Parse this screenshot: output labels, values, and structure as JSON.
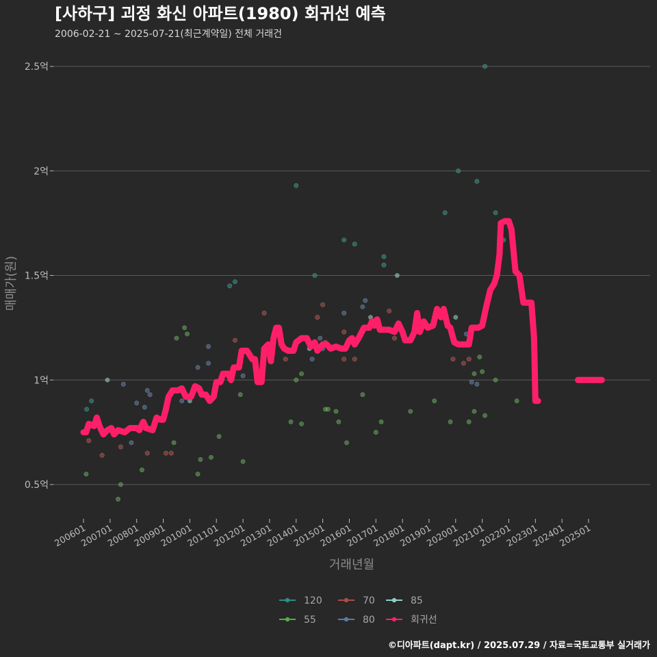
{
  "chart_data": {
    "type": "scatter",
    "title": "[사하구] 괴정 화신 아파트(1980) 회귀선 예측",
    "subtitle": "2006-02-21 ~ 2025-07-21(최근계약일) 전체 거래건",
    "xlabel": "거래년월",
    "ylabel": "매매가(원)",
    "ylim": [
      0.35,
      2.6
    ],
    "xlim": [
      2005.6,
      2027.3
    ],
    "y_ticks": [
      {
        "value": 0.5,
        "label": "0.5억"
      },
      {
        "value": 1.0,
        "label": "1억"
      },
      {
        "value": 1.5,
        "label": "1.5억"
      },
      {
        "value": 2.0,
        "label": "2억"
      },
      {
        "value": 2.5,
        "label": "2.5억"
      }
    ],
    "x_ticks": [
      {
        "value": 2006,
        "label": "200601"
      },
      {
        "value": 2007,
        "label": "200701"
      },
      {
        "value": 2008,
        "label": "200801"
      },
      {
        "value": 2009,
        "label": "200901"
      },
      {
        "value": 2010,
        "label": "201001"
      },
      {
        "value": 2011,
        "label": "201101"
      },
      {
        "value": 2012,
        "label": "201201"
      },
      {
        "value": 2013,
        "label": "201301"
      },
      {
        "value": 2014,
        "label": "201401"
      },
      {
        "value": 2015,
        "label": "201501"
      },
      {
        "value": 2016,
        "label": "201601"
      },
      {
        "value": 2017,
        "label": "201701"
      },
      {
        "value": 2018,
        "label": "201801"
      },
      {
        "value": 2019,
        "label": "201901"
      },
      {
        "value": 2020,
        "label": "202001"
      },
      {
        "value": 2021,
        "label": "202101"
      },
      {
        "value": 2022,
        "label": "202201"
      },
      {
        "value": 2023,
        "label": "202301"
      },
      {
        "value": 2024,
        "label": "202401"
      },
      {
        "value": 2025,
        "label": "202501"
      }
    ],
    "series": [
      {
        "name": "120",
        "color": "#2e8f86",
        "points": [
          [
            2006.12,
            0.86
          ],
          [
            2006.3,
            0.9
          ],
          [
            2011.5,
            1.45
          ],
          [
            2011.7,
            1.47
          ],
          [
            2014.0,
            1.93
          ],
          [
            2014.7,
            1.5
          ],
          [
            2015.8,
            1.67
          ],
          [
            2016.2,
            1.65
          ],
          [
            2017.3,
            1.59
          ],
          [
            2017.3,
            1.55
          ],
          [
            2019.6,
            1.8
          ],
          [
            2020.1,
            2.0
          ],
          [
            2020.8,
            1.95
          ],
          [
            2021.1,
            2.5
          ],
          [
            2021.5,
            1.8
          ],
          [
            2021.8,
            1.67
          ]
        ]
      },
      {
        "name": "70",
        "color": "#b24a48",
        "points": [
          [
            2006.2,
            0.71
          ],
          [
            2006.7,
            0.64
          ],
          [
            2007.4,
            0.68
          ],
          [
            2008.4,
            0.65
          ],
          [
            2009.1,
            0.65
          ],
          [
            2009.3,
            0.65
          ],
          [
            2011.7,
            1.19
          ],
          [
            2012.8,
            1.32
          ],
          [
            2013.6,
            1.1
          ],
          [
            2014.8,
            1.3
          ],
          [
            2015.0,
            1.36
          ],
          [
            2015.1,
            1.18
          ],
          [
            2015.8,
            1.23
          ],
          [
            2015.8,
            1.1
          ],
          [
            2016.2,
            1.1
          ],
          [
            2017.5,
            1.33
          ],
          [
            2017.7,
            1.2
          ],
          [
            2019.9,
            1.1
          ],
          [
            2020.3,
            1.08
          ],
          [
            2020.5,
            1.1
          ]
        ]
      },
      {
        "name": "85",
        "color": "#8fd0c6",
        "points": [
          [
            2006.9,
            1.0
          ],
          [
            2010.0,
            0.9
          ],
          [
            2011.2,
            1.0
          ],
          [
            2014.5,
            1.15
          ],
          [
            2016.8,
            1.3
          ],
          [
            2017.8,
            1.5
          ],
          [
            2019.4,
            1.32
          ],
          [
            2020.0,
            1.3
          ]
        ]
      },
      {
        "name": "55",
        "color": "#5aa84e",
        "points": [
          [
            2006.1,
            0.55
          ],
          [
            2007.3,
            0.43
          ],
          [
            2007.4,
            0.5
          ],
          [
            2008.2,
            0.57
          ],
          [
            2009.4,
            0.7
          ],
          [
            2009.5,
            1.2
          ],
          [
            2010.3,
            0.55
          ],
          [
            2010.4,
            0.62
          ],
          [
            2010.8,
            0.63
          ],
          [
            2011.1,
            0.73
          ],
          [
            2011.9,
            0.93
          ],
          [
            2012.0,
            0.61
          ],
          [
            2013.8,
            0.8
          ],
          [
            2014.0,
            1.0
          ],
          [
            2014.2,
            0.79
          ],
          [
            2014.2,
            1.03
          ],
          [
            2015.1,
            0.86
          ],
          [
            2015.2,
            0.86
          ],
          [
            2015.5,
            0.85
          ],
          [
            2015.6,
            0.8
          ],
          [
            2015.9,
            0.7
          ],
          [
            2016.5,
            0.93
          ],
          [
            2017.0,
            0.75
          ],
          [
            2017.2,
            0.8
          ],
          [
            2018.3,
            0.85
          ],
          [
            2019.2,
            0.9
          ],
          [
            2019.8,
            0.8
          ],
          [
            2020.5,
            0.8
          ],
          [
            2020.7,
            0.85
          ],
          [
            2020.7,
            1.03
          ],
          [
            2020.9,
            1.11
          ],
          [
            2021.0,
            1.04
          ],
          [
            2021.1,
            0.83
          ],
          [
            2021.5,
            1.0
          ],
          [
            2022.3,
            0.9
          ],
          [
            2009.8,
            1.25
          ],
          [
            2009.9,
            1.22
          ]
        ]
      },
      {
        "name": "80",
        "color": "#5d7aa6",
        "points": [
          [
            2007.5,
            0.98
          ],
          [
            2007.8,
            0.7
          ],
          [
            2008.0,
            0.89
          ],
          [
            2008.3,
            0.87
          ],
          [
            2008.4,
            0.95
          ],
          [
            2008.5,
            0.93
          ],
          [
            2009.7,
            0.9
          ],
          [
            2010.3,
            1.06
          ],
          [
            2010.7,
            1.08
          ],
          [
            2010.7,
            1.16
          ],
          [
            2012.0,
            1.02
          ],
          [
            2014.6,
            1.1
          ],
          [
            2014.9,
            1.2
          ],
          [
            2015.0,
            1.15
          ],
          [
            2015.8,
            1.32
          ],
          [
            2016.5,
            1.35
          ],
          [
            2016.6,
            1.38
          ],
          [
            2017.0,
            1.29
          ],
          [
            2019.4,
            1.33
          ],
          [
            2020.4,
            1.22
          ],
          [
            2020.6,
            0.99
          ],
          [
            2020.8,
            0.98
          ]
        ]
      }
    ],
    "regression": {
      "name": "회귀선",
      "color": "#ff1f69",
      "segments": [
        [
          [
            2006.0,
            0.75
          ],
          [
            2006.1,
            0.75
          ],
          [
            2006.2,
            0.79
          ],
          [
            2006.4,
            0.78
          ],
          [
            2006.5,
            0.82
          ],
          [
            2006.6,
            0.78
          ],
          [
            2006.75,
            0.74
          ],
          [
            2006.9,
            0.76
          ],
          [
            2007.05,
            0.77
          ],
          [
            2007.15,
            0.74
          ],
          [
            2007.3,
            0.76
          ],
          [
            2007.55,
            0.75
          ],
          [
            2007.75,
            0.77
          ],
          [
            2008.0,
            0.77
          ],
          [
            2008.1,
            0.76
          ],
          [
            2008.25,
            0.8
          ],
          [
            2008.35,
            0.77
          ],
          [
            2008.6,
            0.76
          ],
          [
            2008.75,
            0.82
          ],
          [
            2008.9,
            0.81
          ],
          [
            2009.0,
            0.81
          ],
          [
            2009.1,
            0.86
          ],
          [
            2009.2,
            0.92
          ],
          [
            2009.35,
            0.95
          ],
          [
            2009.55,
            0.95
          ],
          [
            2009.7,
            0.96
          ],
          [
            2009.85,
            0.92
          ],
          [
            2010.05,
            0.92
          ],
          [
            2010.2,
            0.97
          ],
          [
            2010.35,
            0.96
          ],
          [
            2010.45,
            0.93
          ],
          [
            2010.6,
            0.93
          ],
          [
            2010.75,
            0.9
          ],
          [
            2010.9,
            0.92
          ],
          [
            2011.0,
            0.99
          ],
          [
            2011.15,
            0.99
          ],
          [
            2011.25,
            1.03
          ],
          [
            2011.45,
            1.03
          ],
          [
            2011.55,
            1.0
          ],
          [
            2011.65,
            1.06
          ],
          [
            2011.85,
            1.06
          ],
          [
            2011.95,
            1.14
          ],
          [
            2012.15,
            1.14
          ],
          [
            2012.35,
            1.1
          ],
          [
            2012.45,
            1.1
          ],
          [
            2012.55,
            0.99
          ],
          [
            2012.7,
            0.99
          ],
          [
            2012.8,
            1.15
          ],
          [
            2012.95,
            1.17
          ],
          [
            2013.05,
            1.09
          ],
          [
            2013.15,
            1.2
          ],
          [
            2013.25,
            1.25
          ],
          [
            2013.35,
            1.25
          ],
          [
            2013.45,
            1.17
          ],
          [
            2013.55,
            1.15
          ],
          [
            2013.7,
            1.14
          ],
          [
            2013.9,
            1.14
          ],
          [
            2014.0,
            1.18
          ],
          [
            2014.2,
            1.2
          ],
          [
            2014.4,
            1.2
          ],
          [
            2014.55,
            1.16
          ],
          [
            2014.7,
            1.18
          ],
          [
            2014.8,
            1.14
          ],
          [
            2015.0,
            1.17
          ],
          [
            2015.15,
            1.17
          ],
          [
            2015.3,
            1.15
          ],
          [
            2015.5,
            1.16
          ],
          [
            2015.7,
            1.15
          ],
          [
            2015.85,
            1.15
          ],
          [
            2016.0,
            1.19
          ],
          [
            2016.1,
            1.2
          ],
          [
            2016.2,
            1.17
          ],
          [
            2016.35,
            1.2
          ],
          [
            2016.55,
            1.25
          ],
          [
            2016.75,
            1.25
          ],
          [
            2016.85,
            1.28
          ],
          [
            2016.95,
            1.26
          ],
          [
            2017.05,
            1.29
          ],
          [
            2017.15,
            1.24
          ],
          [
            2017.3,
            1.24
          ],
          [
            2017.5,
            1.24
          ],
          [
            2017.7,
            1.23
          ],
          [
            2017.85,
            1.27
          ],
          [
            2018.0,
            1.23
          ],
          [
            2018.1,
            1.19
          ],
          [
            2018.3,
            1.19
          ],
          [
            2018.45,
            1.23
          ],
          [
            2018.55,
            1.32
          ],
          [
            2018.65,
            1.23
          ],
          [
            2018.8,
            1.28
          ],
          [
            2018.95,
            1.25
          ],
          [
            2019.15,
            1.26
          ],
          [
            2019.3,
            1.34
          ],
          [
            2019.45,
            1.3
          ],
          [
            2019.55,
            1.34
          ],
          [
            2019.7,
            1.26
          ],
          [
            2019.8,
            1.25
          ],
          [
            2019.95,
            1.18
          ],
          [
            2020.1,
            1.17
          ],
          [
            2020.3,
            1.17
          ],
          [
            2020.5,
            1.17
          ],
          [
            2020.6,
            1.25
          ],
          [
            2020.7,
            1.25
          ],
          [
            2020.85,
            1.25
          ],
          [
            2021.0,
            1.26
          ],
          [
            2021.15,
            1.35
          ],
          [
            2021.3,
            1.43
          ],
          [
            2021.45,
            1.46
          ],
          [
            2021.55,
            1.5
          ],
          [
            2021.65,
            1.6
          ],
          [
            2021.7,
            1.75
          ],
          [
            2021.85,
            1.76
          ],
          [
            2022.0,
            1.76
          ],
          [
            2022.1,
            1.72
          ],
          [
            2022.25,
            1.52
          ],
          [
            2022.4,
            1.5
          ],
          [
            2022.55,
            1.37
          ],
          [
            2022.7,
            1.37
          ],
          [
            2022.85,
            1.37
          ],
          [
            2022.95,
            1.2
          ],
          [
            2023.0,
            0.9
          ],
          [
            2023.1,
            0.9
          ]
        ],
        [
          [
            2024.6,
            1.0
          ],
          [
            2025.5,
            1.0
          ]
        ]
      ]
    },
    "legend": [
      {
        "name": "120",
        "color": "#2e8f86"
      },
      {
        "name": "70",
        "color": "#b24a48"
      },
      {
        "name": "85",
        "color": "#8fd0c6"
      },
      {
        "name": "55",
        "color": "#5aa84e"
      },
      {
        "name": "80",
        "color": "#5d7aa6"
      },
      {
        "name": "회귀선",
        "color": "#ff1f69"
      }
    ],
    "footer": "©디아파트(dapt.kr) / 2025.07.29 / 자료=국토교통부 실거래가"
  }
}
